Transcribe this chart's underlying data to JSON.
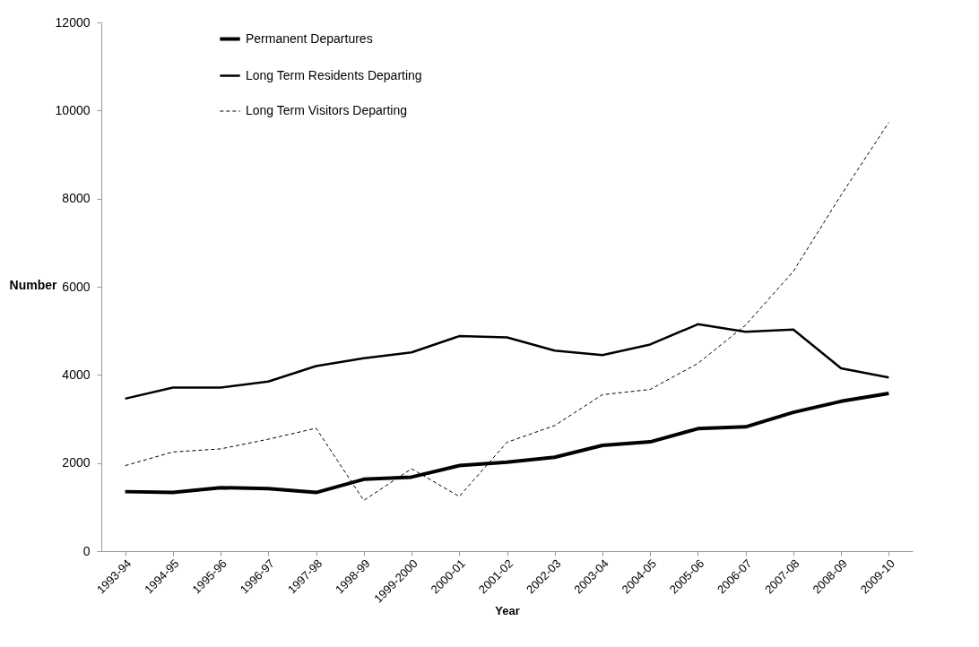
{
  "chart_data": {
    "type": "line",
    "xlabel": "Year",
    "ylabel": "Number",
    "categories": [
      "1993-94",
      "1994-95",
      "1995-96",
      "1996-97",
      "1997-98",
      "1998-99",
      "1999-2000",
      "2000-01",
      "2001-02",
      "2002-03",
      "2003-04",
      "2004-05",
      "2005-06",
      "2006-07",
      "2007-08",
      "2008-09",
      "2009-10"
    ],
    "series": [
      {
        "name": "Permanent Departures",
        "color": "#000000",
        "line_style": "solid",
        "values": [
          1350,
          1330,
          1440,
          1420,
          1330,
          1630,
          1680,
          1940,
          2020,
          2130,
          2400,
          2480,
          2780,
          2820,
          3150,
          3400,
          3580
        ]
      },
      {
        "name": "Long Term Residents Departing",
        "color": "#000000",
        "line_style": "solid",
        "values": [
          3460,
          3710,
          3710,
          3850,
          4200,
          4380,
          4510,
          4880,
          4850,
          4550,
          4450,
          4690,
          5150,
          4980,
          5030,
          4150,
          3940
        ]
      },
      {
        "name": "Long Term Visitors Departing",
        "color": "#000000",
        "line_style": "dashed",
        "values": [
          1940,
          2250,
          2320,
          2540,
          2790,
          1150,
          1870,
          1240,
          2470,
          2850,
          3550,
          3670,
          4260,
          5130,
          6350,
          8080,
          9730
        ]
      }
    ],
    "ylim": [
      0,
      12000
    ],
    "yticks": [
      0,
      2000,
      4000,
      6000,
      8000,
      10000,
      12000
    ],
    "grid": false,
    "legend": "top left",
    "marker": "none"
  }
}
